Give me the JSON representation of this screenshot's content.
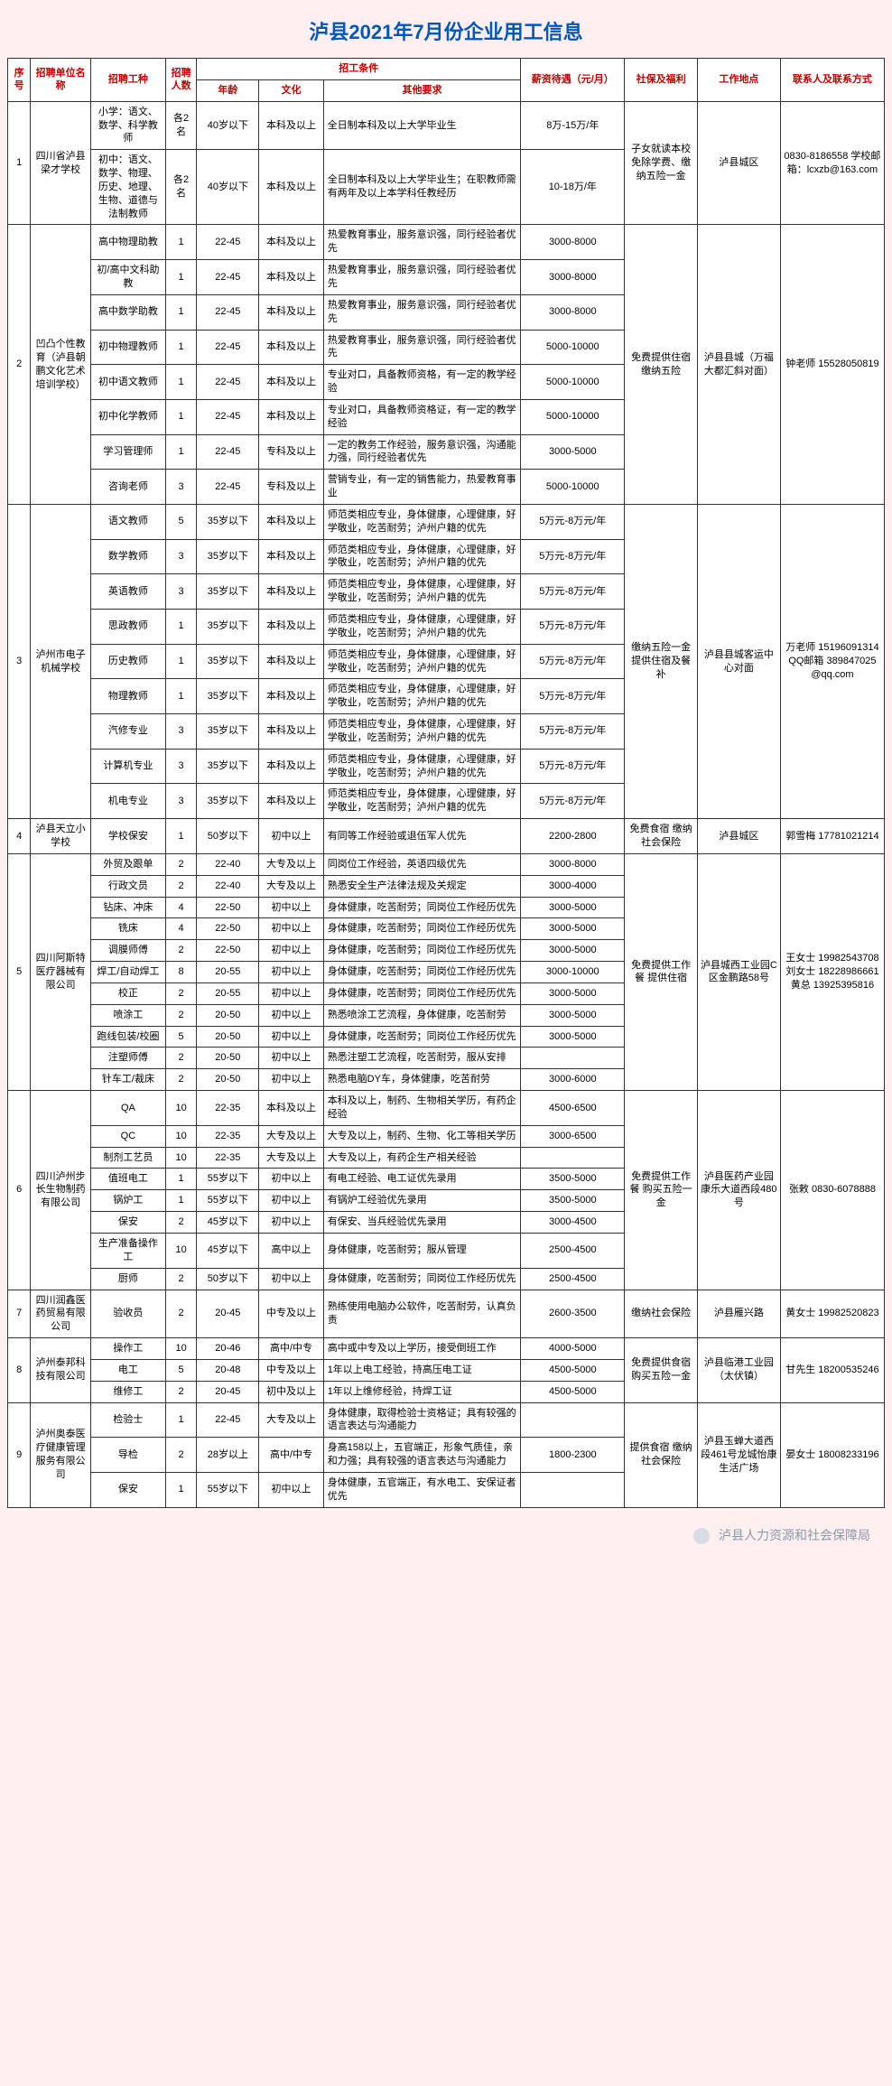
{
  "title": "泸县2021年7月份企业用工信息",
  "headers": {
    "seq": "序号",
    "company": "招聘单位名称",
    "job": "招聘工种",
    "count": "招聘人数",
    "conditions": "招工条件",
    "age": "年龄",
    "edu": "文化",
    "other": "其他要求",
    "salary": "薪资待遇（元/月）",
    "welfare": "社保及福利",
    "location": "工作地点",
    "contact": "联系人及联系方式"
  },
  "companies": [
    {
      "seq": "1",
      "name": "四川省泸县梁才学校",
      "welfare": "子女就读本校免除学费、缴纳五险一金",
      "location": "泸县城区",
      "contact": "0830-8186558 学校邮箱：lcxzb@163.com",
      "rows": [
        {
          "job": "小学：语文、数学、科学教师",
          "count": "各2名",
          "age": "40岁以下",
          "edu": "本科及以上",
          "other": "全日制本科及以上大学毕业生",
          "salary": "8万-15万/年"
        },
        {
          "job": "初中：语文、数学、物理、历史、地理、生物、道德与法制教师",
          "count": "各2名",
          "age": "40岁以下",
          "edu": "本科及以上",
          "other": "全日制本科及以上大学毕业生；在职教师需有两年及以上本学科任教经历",
          "salary": "10-18万/年"
        }
      ]
    },
    {
      "seq": "2",
      "name": "凹凸个性教育（泸县朝鹏文化艺术培训学校）",
      "welfare": "免费提供住宿 缴纳五险",
      "location": "泸县县城（万福大都汇斜对面）",
      "contact": "钟老师 15528050819",
      "rows": [
        {
          "job": "高中物理助教",
          "count": "1",
          "age": "22-45",
          "edu": "本科及以上",
          "other": "热爱教育事业，服务意识强，同行经验者优先",
          "salary": "3000-8000"
        },
        {
          "job": "初/高中文科助教",
          "count": "1",
          "age": "22-45",
          "edu": "本科及以上",
          "other": "热爱教育事业，服务意识强，同行经验者优先",
          "salary": "3000-8000"
        },
        {
          "job": "高中数学助教",
          "count": "1",
          "age": "22-45",
          "edu": "本科及以上",
          "other": "热爱教育事业，服务意识强，同行经验者优先",
          "salary": "3000-8000"
        },
        {
          "job": "初中物理教师",
          "count": "1",
          "age": "22-45",
          "edu": "本科及以上",
          "other": "热爱教育事业，服务意识强，同行经验者优先",
          "salary": "5000-10000"
        },
        {
          "job": "初中语文教师",
          "count": "1",
          "age": "22-45",
          "edu": "本科及以上",
          "other": "专业对口，具备教师资格，有一定的教学经验",
          "salary": "5000-10000"
        },
        {
          "job": "初中化学教师",
          "count": "1",
          "age": "22-45",
          "edu": "本科及以上",
          "other": "专业对口，具备教师资格证，有一定的教学经验",
          "salary": "5000-10000"
        },
        {
          "job": "学习管理师",
          "count": "1",
          "age": "22-45",
          "edu": "专科及以上",
          "other": "一定的教务工作经验，服务意识强，沟通能力强，同行经验者优先",
          "salary": "3000-5000"
        },
        {
          "job": "咨询老师",
          "count": "3",
          "age": "22-45",
          "edu": "专科及以上",
          "other": "营销专业，有一定的销售能力，热爱教育事业",
          "salary": "5000-10000"
        }
      ]
    },
    {
      "seq": "3",
      "name": "泸州市电子机械学校",
      "welfare": "缴纳五险一金 提供住宿及餐补",
      "location": "泸县县城客运中心对面",
      "contact": "万老师 15196091314 QQ邮箱 389847025@qq.com",
      "rows": [
        {
          "job": "语文教师",
          "count": "5",
          "age": "35岁以下",
          "edu": "本科及以上",
          "other": "师范类相应专业，身体健康，心理健康，好学敬业，吃苦耐劳；泸州户籍的优先",
          "salary": "5万元-8万元/年"
        },
        {
          "job": "数学教师",
          "count": "3",
          "age": "35岁以下",
          "edu": "本科及以上",
          "other": "师范类相应专业，身体健康，心理健康，好学敬业，吃苦耐劳；泸州户籍的优先",
          "salary": "5万元-8万元/年"
        },
        {
          "job": "英语教师",
          "count": "3",
          "age": "35岁以下",
          "edu": "本科及以上",
          "other": "师范类相应专业，身体健康，心理健康，好学敬业，吃苦耐劳；泸州户籍的优先",
          "salary": "5万元-8万元/年"
        },
        {
          "job": "思政教师",
          "count": "1",
          "age": "35岁以下",
          "edu": "本科及以上",
          "other": "师范类相应专业，身体健康，心理健康，好学敬业，吃苦耐劳；泸州户籍的优先",
          "salary": "5万元-8万元/年"
        },
        {
          "job": "历史教师",
          "count": "1",
          "age": "35岁以下",
          "edu": "本科及以上",
          "other": "师范类相应专业，身体健康，心理健康，好学敬业，吃苦耐劳；泸州户籍的优先",
          "salary": "5万元-8万元/年"
        },
        {
          "job": "物理教师",
          "count": "1",
          "age": "35岁以下",
          "edu": "本科及以上",
          "other": "师范类相应专业，身体健康，心理健康，好学敬业，吃苦耐劳；泸州户籍的优先",
          "salary": "5万元-8万元/年"
        },
        {
          "job": "汽修专业",
          "count": "3",
          "age": "35岁以下",
          "edu": "本科及以上",
          "other": "师范类相应专业，身体健康，心理健康，好学敬业，吃苦耐劳；泸州户籍的优先",
          "salary": "5万元-8万元/年"
        },
        {
          "job": "计算机专业",
          "count": "3",
          "age": "35岁以下",
          "edu": "本科及以上",
          "other": "师范类相应专业，身体健康，心理健康，好学敬业，吃苦耐劳；泸州户籍的优先",
          "salary": "5万元-8万元/年"
        },
        {
          "job": "机电专业",
          "count": "3",
          "age": "35岁以下",
          "edu": "本科及以上",
          "other": "师范类相应专业，身体健康，心理健康，好学敬业，吃苦耐劳；泸州户籍的优先",
          "salary": "5万元-8万元/年"
        }
      ]
    },
    {
      "seq": "4",
      "name": "泸县天立小学校",
      "welfare": "免费食宿 缴纳社会保险",
      "location": "泸县城区",
      "contact": "郭雪梅 17781021214",
      "rows": [
        {
          "job": "学校保安",
          "count": "1",
          "age": "50岁以下",
          "edu": "初中以上",
          "other": "有同等工作经验或退伍军人优先",
          "salary": "2200-2800"
        }
      ]
    },
    {
      "seq": "5",
      "name": "四川阿斯特医疗器械有限公司",
      "welfare": "免费提供工作餐 提供住宿",
      "location": "泸县城西工业园C区金鹏路58号",
      "contact": "王女士 19982543708 刘女士 18228986661 黄总 13925395816",
      "rows": [
        {
          "job": "外贸及跟单",
          "count": "2",
          "age": "22-40",
          "edu": "大专及以上",
          "other": "同岗位工作经验，英语四级优先",
          "salary": "3000-8000"
        },
        {
          "job": "行政文员",
          "count": "2",
          "age": "22-40",
          "edu": "大专及以上",
          "other": "熟悉安全生产法律法规及关规定",
          "salary": "3000-4000"
        },
        {
          "job": "钻床、冲床",
          "count": "4",
          "age": "22-50",
          "edu": "初中以上",
          "other": "身体健康，吃苦耐劳；同岗位工作经历优先",
          "salary": "3000-5000"
        },
        {
          "job": "铣床",
          "count": "4",
          "age": "22-50",
          "edu": "初中以上",
          "other": "身体健康，吃苦耐劳；同岗位工作经历优先",
          "salary": "3000-5000"
        },
        {
          "job": "调膜师傅",
          "count": "2",
          "age": "22-50",
          "edu": "初中以上",
          "other": "身体健康，吃苦耐劳；同岗位工作经历优先",
          "salary": "3000-5000"
        },
        {
          "job": "焊工/自动焊工",
          "count": "8",
          "age": "20-55",
          "edu": "初中以上",
          "other": "身体健康，吃苦耐劳；同岗位工作经历优先",
          "salary": "3000-10000"
        },
        {
          "job": "校正",
          "count": "2",
          "age": "20-55",
          "edu": "初中以上",
          "other": "身体健康，吃苦耐劳；同岗位工作经历优先",
          "salary": "3000-5000"
        },
        {
          "job": "喷涂工",
          "count": "2",
          "age": "20-50",
          "edu": "初中以上",
          "other": "熟悉喷涂工艺流程，身体健康，吃苦耐劳",
          "salary": "3000-5000"
        },
        {
          "job": "跑线包装/校圈",
          "count": "5",
          "age": "20-50",
          "edu": "初中以上",
          "other": "身体健康，吃苦耐劳；同岗位工作经历优先",
          "salary": "3000-5000"
        },
        {
          "job": "注塑师傅",
          "count": "2",
          "age": "20-50",
          "edu": "初中以上",
          "other": "熟悉注塑工艺流程，吃苦耐劳，服从安排",
          "salary": ""
        },
        {
          "job": "针车工/裁床",
          "count": "2",
          "age": "20-50",
          "edu": "初中以上",
          "other": "熟悉电脑DY车，身体健康，吃苦耐劳",
          "salary": "3000-6000"
        }
      ]
    },
    {
      "seq": "6",
      "name": "四川泸州步长生物制药有限公司",
      "welfare": "免费提供工作餐 购买五险一金",
      "location": "泸县医药产业园康乐大道西段480号",
      "contact": "张敕 0830-6078888",
      "rows": [
        {
          "job": "QA",
          "count": "10",
          "age": "22-35",
          "edu": "本科及以上",
          "other": "本科及以上，制药、生物相关学历，有药企经验",
          "salary": "4500-6500"
        },
        {
          "job": "QC",
          "count": "10",
          "age": "22-35",
          "edu": "大专及以上",
          "other": "大专及以上，制药、生物、化工等相关学历",
          "salary": "3000-6500"
        },
        {
          "job": "制剂工艺员",
          "count": "10",
          "age": "22-35",
          "edu": "大专及以上",
          "other": "大专及以上，有药企生产相关经验",
          "salary": ""
        },
        {
          "job": "值班电工",
          "count": "1",
          "age": "55岁以下",
          "edu": "初中以上",
          "other": "有电工经验、电工证优先录用",
          "salary": "3500-5000"
        },
        {
          "job": "锅炉工",
          "count": "1",
          "age": "55岁以下",
          "edu": "初中以上",
          "other": "有锅炉工经验优先录用",
          "salary": "3500-5000"
        },
        {
          "job": "保安",
          "count": "2",
          "age": "45岁以下",
          "edu": "初中以上",
          "other": "有保安、当兵经验优先录用",
          "salary": "3000-4500"
        },
        {
          "job": "生产准备操作工",
          "count": "10",
          "age": "45岁以下",
          "edu": "高中以上",
          "other": "身体健康，吃苦耐劳；服从管理",
          "salary": "2500-4500"
        },
        {
          "job": "厨师",
          "count": "2",
          "age": "50岁以下",
          "edu": "初中以上",
          "other": "身体健康，吃苦耐劳；同岗位工作经历优先",
          "salary": "2500-4500"
        }
      ]
    },
    {
      "seq": "7",
      "name": "四川润鑫医药贸易有限公司",
      "welfare": "缴纳社会保险",
      "location": "泸县雁兴路",
      "contact": "黄女士 19982520823",
      "rows": [
        {
          "job": "验收员",
          "count": "2",
          "age": "20-45",
          "edu": "中专及以上",
          "other": "熟练使用电脑办公软件，吃苦耐劳，认真负责",
          "salary": "2600-3500"
        }
      ]
    },
    {
      "seq": "8",
      "name": "泸州泰邦科技有限公司",
      "welfare": "免费提供食宿 购买五险一金",
      "location": "泸县临港工业园（太伏镇）",
      "contact": "甘先生 18200535246",
      "rows": [
        {
          "job": "操作工",
          "count": "10",
          "age": "20-46",
          "edu": "高中/中专",
          "other": "高中或中专及以上学历，接受倒班工作",
          "salary": "4000-5000"
        },
        {
          "job": "电工",
          "count": "5",
          "age": "20-48",
          "edu": "中专及以上",
          "other": "1年以上电工经验，持高压电工证",
          "salary": "4500-5000"
        },
        {
          "job": "维修工",
          "count": "2",
          "age": "20-45",
          "edu": "初中及以上",
          "other": "1年以上维修经验，持焊工证",
          "salary": "4500-5000"
        }
      ]
    },
    {
      "seq": "9",
      "name": "泸州奥泰医疗健康管理服务有限公司",
      "welfare": "提供食宿 缴纳社会保险",
      "location": "泸县玉蝉大道西段461号龙城怡康生活广场",
      "contact": "晏女士 18008233196",
      "rows": [
        {
          "job": "检验士",
          "count": "1",
          "age": "22-45",
          "edu": "大专及以上",
          "other": "身体健康，取得检验士资格证；具有较强的语言表达与沟通能力",
          "salary": ""
        },
        {
          "job": "导检",
          "count": "2",
          "age": "28岁以上",
          "edu": "高中/中专",
          "other": "身高158以上，五官端正，形象气质佳，亲和力强；具有较强的语言表达与沟通能力",
          "salary": "1800-2300"
        },
        {
          "job": "保安",
          "count": "1",
          "age": "55岁以下",
          "edu": "初中以上",
          "other": "身体健康，五官端正，有水电工、安保证者优先",
          "salary": ""
        }
      ]
    }
  ],
  "footer": "泸县人力资源和社会保障局"
}
